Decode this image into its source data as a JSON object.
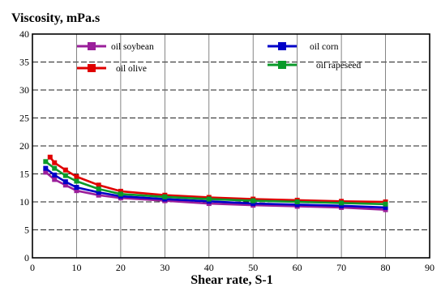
{
  "chart_data": {
    "type": "line",
    "title": "Viscosity, mPa.s",
    "xlabel": "Shear rate, S-1",
    "ylabel": "",
    "xlim": [
      0,
      90
    ],
    "ylim": [
      0,
      40
    ],
    "xticks": [
      0,
      10,
      20,
      30,
      40,
      50,
      60,
      70,
      80,
      90
    ],
    "yticks": [
      0,
      5,
      10,
      15,
      20,
      25,
      30,
      35,
      40
    ],
    "grid": true,
    "legend_position": "top",
    "series": [
      {
        "name": "oil soybean",
        "color": "#9b1f9b",
        "x": [
          3,
          5,
          7.5,
          10,
          15,
          20,
          30,
          40,
          50,
          60,
          70,
          80
        ],
        "y": [
          15.3,
          14.0,
          13.0,
          12.0,
          11.2,
          10.7,
          10.2,
          9.7,
          9.4,
          9.2,
          9.0,
          8.6
        ]
      },
      {
        "name": "oil corn",
        "color": "#0000c8",
        "x": [
          3,
          5,
          7.5,
          10,
          15,
          20,
          30,
          40,
          50,
          60,
          70,
          80
        ],
        "y": [
          16.0,
          14.8,
          13.6,
          12.6,
          11.7,
          11.0,
          10.5,
          10.1,
          9.7,
          9.5,
          9.3,
          9.0
        ]
      },
      {
        "name": "oil olive",
        "color": "#e00000",
        "x": [
          4,
          5,
          7.5,
          10,
          15,
          20,
          30,
          40,
          50,
          60,
          70,
          80
        ],
        "y": [
          18.0,
          17.0,
          15.7,
          14.5,
          13.0,
          11.9,
          11.2,
          10.8,
          10.5,
          10.3,
          10.1,
          10.0
        ]
      },
      {
        "name": "oil rapeseed",
        "color": "#0a9a2a",
        "x": [
          3,
          5,
          7.5,
          10,
          15,
          20,
          30,
          40,
          50,
          60,
          70,
          80
        ],
        "y": [
          17.2,
          16.0,
          14.7,
          13.7,
          12.3,
          11.4,
          10.9,
          10.5,
          10.2,
          10.0,
          9.8,
          9.6
        ]
      }
    ]
  }
}
